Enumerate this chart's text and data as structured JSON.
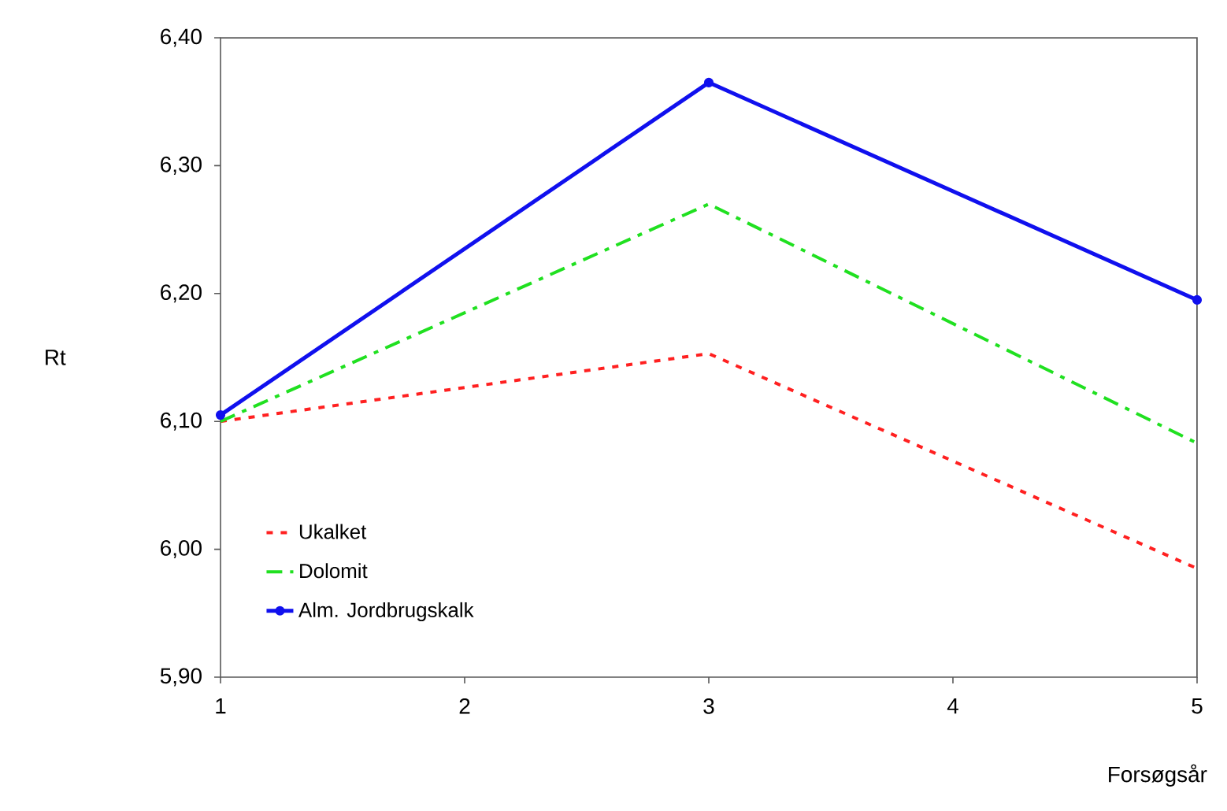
{
  "chart_data": {
    "type": "line",
    "xlabel": "Forsøgsår",
    "ylabel": "Rt",
    "x": [
      1,
      3,
      5
    ],
    "series": [
      {
        "name": "Ukalket",
        "color": "#ff2020",
        "values": [
          6.1,
          6.153,
          5.985
        ],
        "line_style": "dotted",
        "marker": "none"
      },
      {
        "name": "Dolomit",
        "color": "#20e020",
        "values": [
          6.1,
          6.27,
          6.083
        ],
        "line_style": "dashdot",
        "marker": "none"
      },
      {
        "name": "Alm. Jordbrugskalk",
        "color": "#1010ee",
        "values": [
          6.105,
          6.365,
          6.195
        ],
        "line_style": "solid",
        "marker": "circle"
      }
    ],
    "xlim": [
      1,
      5
    ],
    "xticks": [
      1,
      2,
      3,
      4,
      5
    ],
    "ylim": [
      5.9,
      6.4
    ],
    "yticks": [
      {
        "value": 5.9,
        "label": "5,90"
      },
      {
        "value": 6.0,
        "label": "6,00"
      },
      {
        "value": 6.1,
        "label": "6,10"
      },
      {
        "value": 6.2,
        "label": "6,20"
      },
      {
        "value": 6.3,
        "label": "6,30"
      },
      {
        "value": 6.4,
        "label": "6,40"
      }
    ],
    "grid": false,
    "legend": "bottom left"
  }
}
